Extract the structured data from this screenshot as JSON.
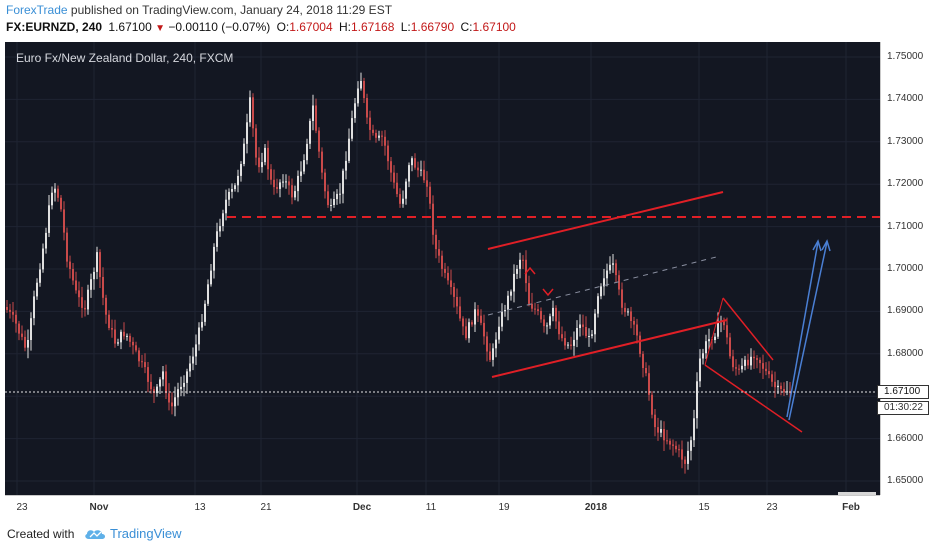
{
  "header": {
    "author": "ForexTrade",
    "published_text": "published on TradingView.com, January 24, 2018 11:29 EST",
    "symbol": "FX:EURNZD,",
    "interval": "240",
    "last": "1.67100",
    "change": "−0.00110 (−0.07%)",
    "open_label": "O:",
    "open": "1.67004",
    "high_label": "H:",
    "high": "1.67168",
    "low_label": "L:",
    "low": "1.66790",
    "close_label": "C:",
    "close": "1.67100"
  },
  "pane_title": "Euro Fx/New Zealand Dollar, 240, FXCM",
  "price_axis": {
    "labels": [
      "1.75000",
      "1.74000",
      "1.73000",
      "1.72000",
      "1.71000",
      "1.70000",
      "1.69000",
      "1.68000",
      "1.67000",
      "1.66000",
      "1.65000"
    ],
    "current_price": "1.67100",
    "countdown": "01:30:22"
  },
  "time_axis": {
    "labels": [
      {
        "text": "23",
        "bold": false
      },
      {
        "text": "Nov",
        "bold": true
      },
      {
        "text": "13",
        "bold": false
      },
      {
        "text": "21",
        "bold": false
      },
      {
        "text": "Dec",
        "bold": true
      },
      {
        "text": "11",
        "bold": false
      },
      {
        "text": "19",
        "bold": false
      },
      {
        "text": "2018",
        "bold": true
      },
      {
        "text": "15",
        "bold": false
      },
      {
        "text": "23",
        "bold": false
      },
      {
        "text": "Feb",
        "bold": true
      }
    ]
  },
  "footer": {
    "created_with": "Created with",
    "brand": "TradingView"
  },
  "colors": {
    "background": "#131722",
    "candle": "#e0e0e0",
    "candle_down": "#c94a4a",
    "drawing_red": "#e01f26",
    "drawing_blue": "#4a7fd4",
    "author_blue": "#3a8fd6",
    "negative": "#c21818"
  }
}
